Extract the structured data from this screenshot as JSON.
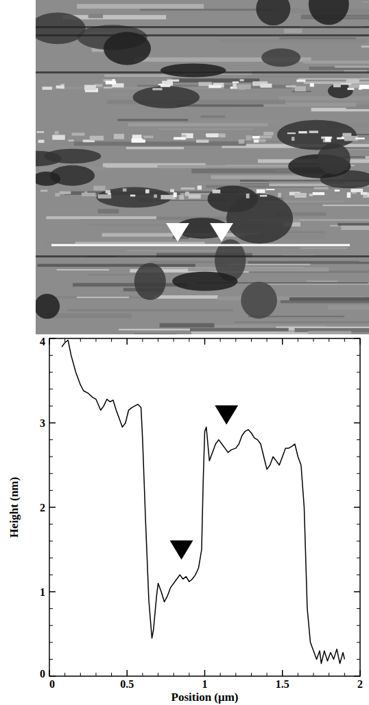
{
  "chart_data": {
    "type": "line",
    "x_label": "Position (μm)",
    "y_label": "Height (nm)",
    "color": "#000000",
    "x": [
      0.08,
      0.1,
      0.12,
      0.14,
      0.17,
      0.2,
      0.22,
      0.25,
      0.28,
      0.3,
      0.33,
      0.35,
      0.37,
      0.39,
      0.41,
      0.43,
      0.45,
      0.47,
      0.49,
      0.51,
      0.53,
      0.55,
      0.57,
      0.59,
      0.6,
      0.62,
      0.64,
      0.66,
      0.67,
      0.69,
      0.7,
      0.72,
      0.74,
      0.76,
      0.78,
      0.8,
      0.82,
      0.84,
      0.86,
      0.88,
      0.9,
      0.92,
      0.94,
      0.96,
      0.98,
      0.99,
      1.0,
      1.01,
      1.02,
      1.03,
      1.05,
      1.07,
      1.09,
      1.11,
      1.13,
      1.15,
      1.17,
      1.2,
      1.22,
      1.24,
      1.26,
      1.28,
      1.3,
      1.32,
      1.34,
      1.36,
      1.38,
      1.4,
      1.42,
      1.44,
      1.46,
      1.48,
      1.5,
      1.52,
      1.54,
      1.56,
      1.58,
      1.6,
      1.62,
      1.64,
      1.66,
      1.68,
      1.7,
      1.72,
      1.74,
      1.75,
      1.77,
      1.79,
      1.81,
      1.83,
      1.85,
      1.87,
      1.89,
      1.9
    ],
    "values": [
      3.9,
      3.95,
      3.98,
      3.8,
      3.6,
      3.45,
      3.38,
      3.35,
      3.3,
      3.28,
      3.15,
      3.2,
      3.28,
      3.25,
      3.27,
      3.15,
      3.05,
      2.95,
      3.0,
      3.15,
      3.18,
      3.2,
      3.22,
      3.18,
      2.8,
      1.8,
      0.9,
      0.45,
      0.55,
      0.95,
      1.1,
      1.0,
      0.88,
      0.95,
      1.05,
      1.1,
      1.15,
      1.2,
      1.15,
      1.18,
      1.12,
      1.15,
      1.2,
      1.28,
      1.5,
      2.3,
      2.9,
      2.95,
      2.75,
      2.55,
      2.65,
      2.75,
      2.8,
      2.75,
      2.7,
      2.65,
      2.68,
      2.7,
      2.75,
      2.85,
      2.9,
      2.92,
      2.88,
      2.82,
      2.8,
      2.75,
      2.6,
      2.45,
      2.5,
      2.6,
      2.55,
      2.5,
      2.6,
      2.7,
      2.7,
      2.72,
      2.75,
      2.6,
      2.5,
      2.0,
      0.8,
      0.4,
      0.3,
      0.2,
      0.3,
      0.15,
      0.3,
      0.18,
      0.28,
      0.2,
      0.32,
      0.15,
      0.28,
      0.2
    ],
    "arrows": [
      {
        "x": 0.85,
        "y": 1.38
      },
      {
        "x": 1.14,
        "y": 2.98
      }
    ],
    "xlim": [
      0,
      2
    ],
    "xticks": [
      0,
      0.5,
      1,
      1.5,
      2
    ],
    "ylim": [
      0,
      4
    ],
    "yticks": [
      0,
      1,
      2,
      3,
      4
    ],
    "grid": false
  }
}
